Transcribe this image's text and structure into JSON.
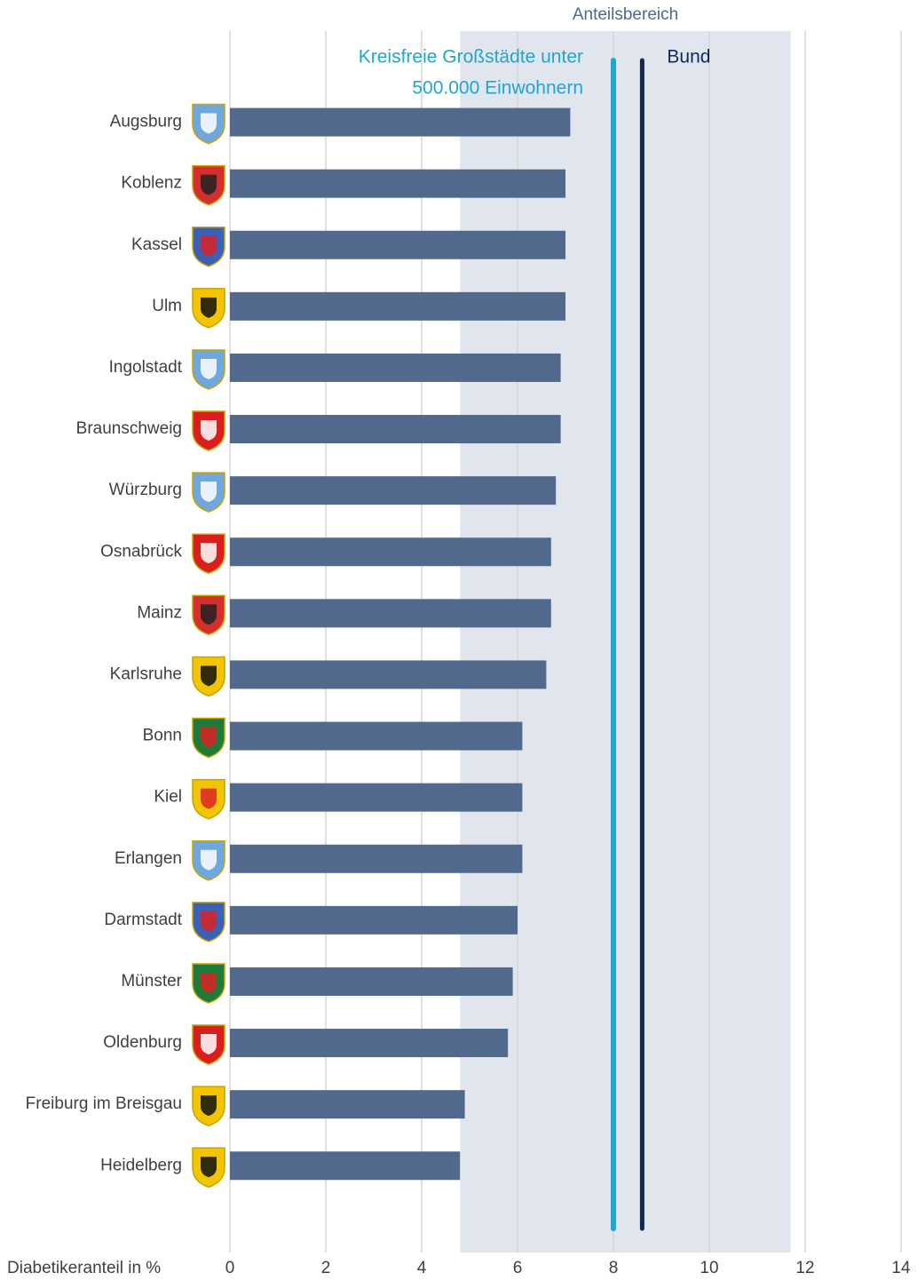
{
  "chart_data": {
    "type": "bar",
    "orientation": "horizontal",
    "x_axis_label": "Diabetikeranteil in %",
    "categories": [
      "Augsburg",
      "Koblenz",
      "Kassel",
      "Ulm",
      "Ingolstadt",
      "Braunschweig",
      "Würzburg",
      "Osnabrück",
      "Mainz",
      "Karlsruhe",
      "Bonn",
      "Kiel",
      "Erlangen",
      "Darmstadt",
      "Münster",
      "Oldenburg",
      "Freiburg im Breisgau",
      "Heidelberg"
    ],
    "values": [
      7.1,
      7.0,
      7.0,
      7.0,
      6.9,
      6.9,
      6.8,
      6.7,
      6.7,
      6.6,
      6.1,
      6.1,
      6.1,
      6.0,
      5.9,
      5.8,
      4.9,
      4.8
    ],
    "color": "#50698d",
    "range_band": {
      "label": "Anteilsbereich",
      "from": 4.8,
      "to": 11.7,
      "color": "#e1e6ee"
    },
    "reference_lines": [
      {
        "label": [
          "Kreisfreie Großstädte unter",
          "500.000 Einwohnern"
        ],
        "value": 8.0,
        "color": "#21a5d1"
      },
      {
        "label": [
          "Bund"
        ],
        "value": 8.6,
        "color": "#0d2a5b"
      }
    ],
    "xlim": [
      0,
      14
    ],
    "xticks": [
      0,
      2,
      4,
      6,
      8,
      10,
      12,
      14
    ],
    "grid": true
  }
}
